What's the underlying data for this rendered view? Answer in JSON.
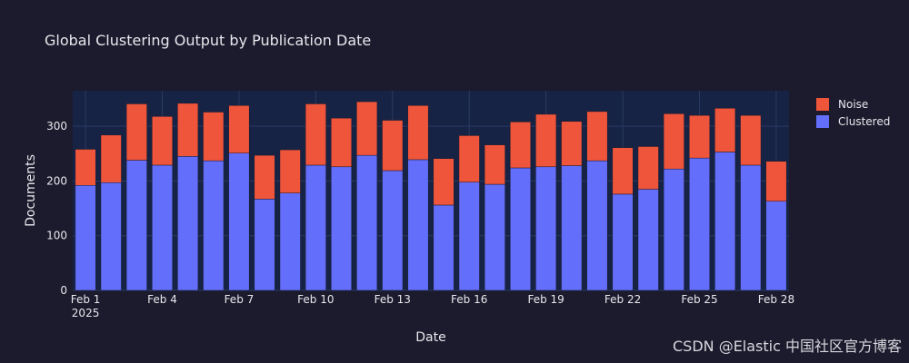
{
  "chart_data": {
    "type": "bar",
    "stacked": true,
    "title": "Global Clustering Output by Publication Date",
    "xlabel": "Date",
    "ylabel": "Documents",
    "ylim": [
      0,
      365
    ],
    "yticks": [
      0,
      100,
      200,
      300
    ],
    "grid": true,
    "legend_position": "top-right",
    "dates": [
      "2025-02-01",
      "2025-02-02",
      "2025-02-03",
      "2025-02-04",
      "2025-02-05",
      "2025-02-06",
      "2025-02-07",
      "2025-02-08",
      "2025-02-09",
      "2025-02-10",
      "2025-02-11",
      "2025-02-12",
      "2025-02-13",
      "2025-02-14",
      "2025-02-15",
      "2025-02-16",
      "2025-02-17",
      "2025-02-18",
      "2025-02-19",
      "2025-02-20",
      "2025-02-21",
      "2025-02-22",
      "2025-02-23",
      "2025-02-24",
      "2025-02-25",
      "2025-02-26",
      "2025-02-27",
      "2025-02-28"
    ],
    "xticks": [
      {
        "date": "2025-02-01",
        "label": "Feb 1",
        "sublabel": "2025"
      },
      {
        "date": "2025-02-04",
        "label": "Feb 4"
      },
      {
        "date": "2025-02-07",
        "label": "Feb 7"
      },
      {
        "date": "2025-02-10",
        "label": "Feb 10"
      },
      {
        "date": "2025-02-13",
        "label": "Feb 13"
      },
      {
        "date": "2025-02-16",
        "label": "Feb 16"
      },
      {
        "date": "2025-02-19",
        "label": "Feb 19"
      },
      {
        "date": "2025-02-22",
        "label": "Feb 22"
      },
      {
        "date": "2025-02-25",
        "label": "Feb 25"
      },
      {
        "date": "2025-02-28",
        "label": "Feb 28"
      }
    ],
    "series": [
      {
        "name": "Clustered",
        "color": "#636efa",
        "values": [
          192,
          197,
          238,
          229,
          245,
          237,
          251,
          167,
          178,
          229,
          226,
          247,
          219,
          239,
          156,
          198,
          194,
          224,
          226,
          228,
          237,
          176,
          185,
          222,
          242,
          253,
          229,
          163
        ]
      },
      {
        "name": "Noise",
        "color": "#ef553b",
        "values": [
          66,
          87,
          103,
          89,
          97,
          89,
          87,
          80,
          79,
          112,
          89,
          98,
          92,
          99,
          85,
          85,
          72,
          84,
          96,
          81,
          90,
          85,
          78,
          101,
          78,
          80,
          91,
          73
        ]
      }
    ],
    "legend_order": [
      "Noise",
      "Clustered"
    ]
  },
  "watermark": "CSDN @Elastic 中国社区官方博客"
}
